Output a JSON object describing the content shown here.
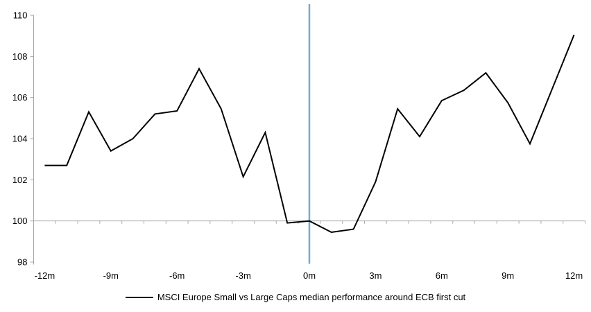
{
  "chart_data": {
    "type": "line",
    "title": "",
    "legend": "MSCI Europe Small vs Large Caps median performance around ECB first cut",
    "categories": [
      "-12m",
      "-11m",
      "-10m",
      "-9m",
      "-8m",
      "-7m",
      "-6m",
      "-5m",
      "-4m",
      "-3m",
      "-2m",
      "-1m",
      "0m",
      "1m",
      "2m",
      "3m",
      "4m",
      "5m",
      "6m",
      "7m",
      "8m",
      "9m",
      "10m",
      "11m",
      "12m"
    ],
    "values": [
      102.7,
      102.7,
      105.3,
      103.4,
      104.0,
      105.2,
      105.35,
      107.4,
      105.45,
      102.15,
      104.3,
      99.9,
      100.0,
      99.45,
      99.6,
      101.9,
      105.45,
      104.1,
      105.85,
      106.35,
      107.2,
      105.75,
      103.75,
      106.4,
      109.05
    ],
    "x_tick_labels": [
      "-12m",
      "-9m",
      "-6m",
      "-3m",
      "0m",
      "3m",
      "6m",
      "9m",
      "12m"
    ],
    "y_ticks": [
      98,
      100,
      102,
      104,
      106,
      108,
      110
    ],
    "ylim": [
      98,
      110
    ],
    "baseline_value": 100,
    "event_line_category": "0m",
    "legend_position": "bottom",
    "grid": "off",
    "colors": {
      "series": "#000000",
      "event_line": "#74A9D8",
      "axis": "#A6A6A6",
      "text": "#000000",
      "background": "#ffffff"
    }
  }
}
